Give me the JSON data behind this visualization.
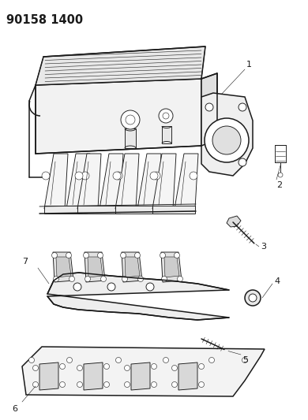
{
  "title": "90158 1400",
  "bg": "#ffffff",
  "lc": "#1a1a1a",
  "fig_w": 3.9,
  "fig_h": 5.33,
  "dpi": 100,
  "lw_main": 1.1,
  "lw_thin": 0.65,
  "lw_hair": 0.4,
  "label_fs": 8.5,
  "title_fs": 10.5
}
